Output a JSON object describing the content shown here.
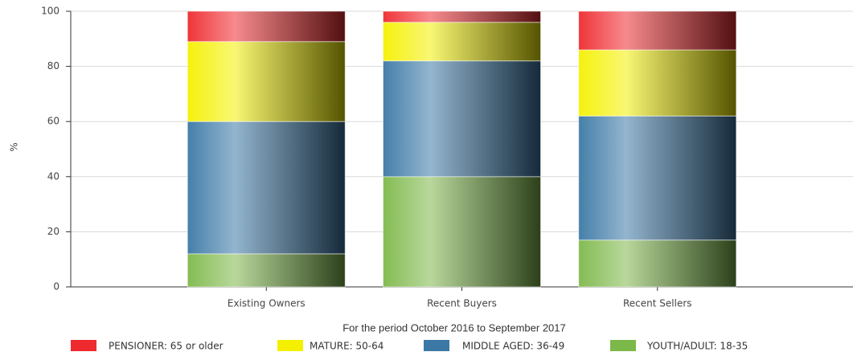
{
  "chart_data": {
    "type": "stacked_bar",
    "subtitle": "For the period October 2016 to September 2017",
    "ylabel": "%",
    "categories": [
      "Existing Owners",
      "Recent Buyers",
      "Recent Sellers"
    ],
    "series": [
      {
        "name": "YOUTH/ADULT: 18-35",
        "color": "#7db84a",
        "values": [
          12,
          40,
          17
        ]
      },
      {
        "name": "MIDDLE AGED: 36-49",
        "color": "#3b78a6",
        "values": [
          48,
          42,
          45
        ]
      },
      {
        "name": "MATURE: 50-64",
        "color": "#f4f000",
        "values": [
          29,
          14,
          24
        ]
      },
      {
        "name": "PENSIONER: 65 or older",
        "color": "#ee2a2f",
        "values": [
          11,
          4,
          14
        ]
      }
    ],
    "ylim": [
      0,
      100
    ],
    "yticks": [
      0,
      20,
      40,
      60,
      80,
      100
    ],
    "grid": true
  }
}
